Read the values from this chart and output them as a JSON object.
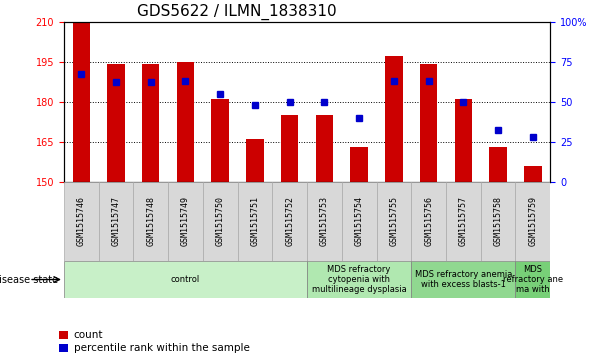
{
  "title": "GDS5622 / ILMN_1838310",
  "samples": [
    "GSM1515746",
    "GSM1515747",
    "GSM1515748",
    "GSM1515749",
    "GSM1515750",
    "GSM1515751",
    "GSM1515752",
    "GSM1515753",
    "GSM1515754",
    "GSM1515755",
    "GSM1515756",
    "GSM1515757",
    "GSM1515758",
    "GSM1515759"
  ],
  "count_values": [
    210,
    194,
    194,
    195,
    181,
    166,
    175,
    175,
    163,
    197,
    194,
    181,
    163,
    156
  ],
  "percentile_values": [
    67,
    62,
    62,
    63,
    55,
    48,
    50,
    50,
    40,
    63,
    63,
    50,
    32,
    28
  ],
  "ylim_left": [
    150,
    210
  ],
  "ylim_right": [
    0,
    100
  ],
  "yticks_left": [
    150,
    165,
    180,
    195,
    210
  ],
  "yticks_right": [
    0,
    25,
    50,
    75,
    100
  ],
  "bar_color": "#cc0000",
  "dot_color": "#0000cc",
  "bar_width": 0.5,
  "disease_groups": [
    {
      "label": "control",
      "start": 0,
      "end": 7,
      "color": "#c8f0c8"
    },
    {
      "label": "MDS refractory\ncytopenia with\nmultilineage dysplasia",
      "start": 7,
      "end": 10,
      "color": "#b0e8b0"
    },
    {
      "label": "MDS refractory anemia\nwith excess blasts-1",
      "start": 10,
      "end": 13,
      "color": "#90d890"
    },
    {
      "label": "MDS\nrefractory ane\nma with",
      "start": 13,
      "end": 14,
      "color": "#78d078"
    }
  ],
  "disease_state_label": "disease state",
  "title_fontsize": 11,
  "tick_fontsize": 7,
  "label_fontsize": 7.5
}
